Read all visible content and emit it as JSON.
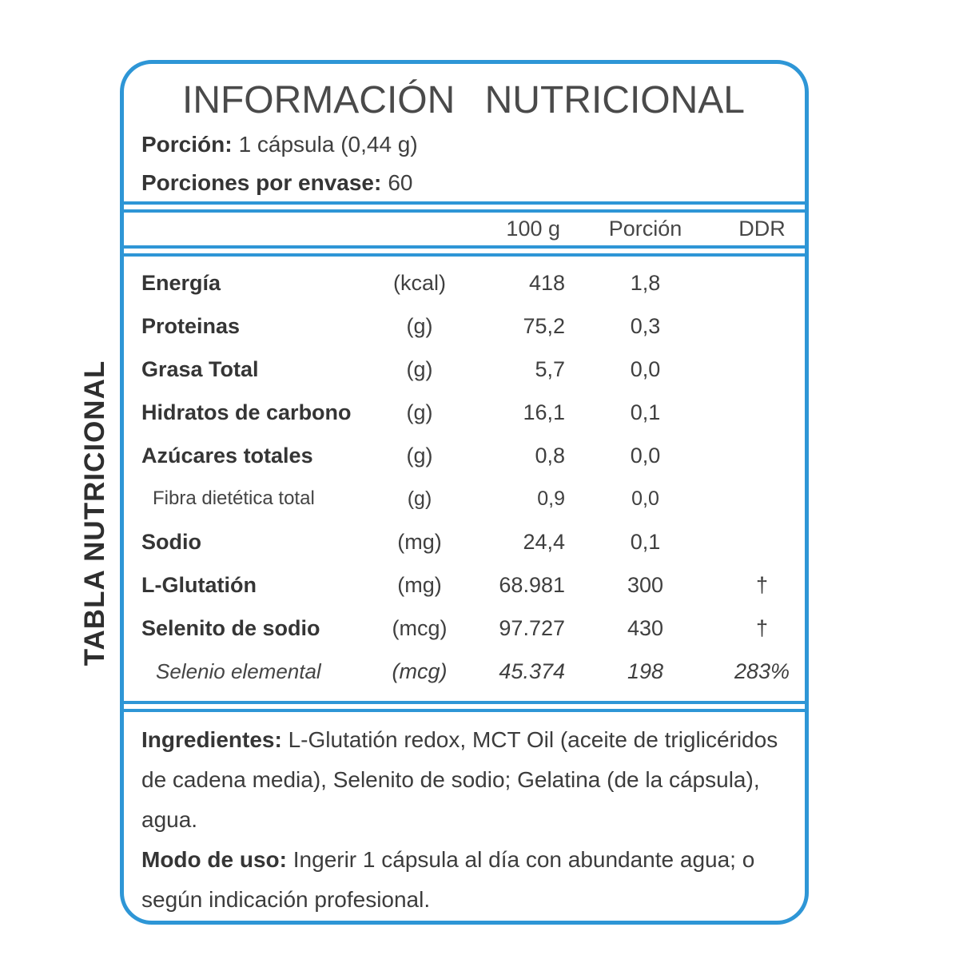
{
  "colors": {
    "accent": "#2E96D6",
    "text": "#3F3F3F"
  },
  "side_label": "TABLA NUTRICIONAL",
  "header": {
    "title": "INFORMACIÓN NUTRICIONAL",
    "serving": {
      "label": "Porción:",
      "value": "1 cápsula (0,44 g)"
    },
    "servings_per_container": {
      "label": "Porciones por envase:",
      "value": "60"
    }
  },
  "table": {
    "columns": {
      "per_100g": "100 g",
      "portion": "Porción",
      "ddr": "DDR"
    },
    "rows": [
      {
        "name": "Energía",
        "unit": "(kcal)",
        "per_100g": "418",
        "portion": "1,8",
        "ddr": "",
        "style": "bold"
      },
      {
        "name": "Proteinas",
        "unit": "(g)",
        "per_100g": "75,2",
        "portion": "0,3",
        "ddr": "",
        "style": "bold"
      },
      {
        "name": "Grasa Total",
        "unit": "(g)",
        "per_100g": "5,7",
        "portion": "0,0",
        "ddr": "",
        "style": "bold"
      },
      {
        "name": "Hidratos de carbono",
        "unit": "(g)",
        "per_100g": "16,1",
        "portion": "0,1",
        "ddr": "",
        "style": "bold"
      },
      {
        "name": "Azúcares totales",
        "unit": "(g)",
        "per_100g": "0,8",
        "portion": "0,0",
        "ddr": "",
        "style": "bold"
      },
      {
        "name": "Fibra dietética total",
        "unit": "(g)",
        "per_100g": "0,9",
        "portion": "0,0",
        "ddr": "",
        "style": "sub"
      },
      {
        "name": "Sodio",
        "unit": "(mg)",
        "per_100g": "24,4",
        "portion": "0,1",
        "ddr": "",
        "style": "bold"
      },
      {
        "name": "L-Glutatión",
        "unit": "(mg)",
        "per_100g": "68.981",
        "portion": "300",
        "ddr": "†",
        "style": "bold"
      },
      {
        "name": "Selenito de sodio",
        "unit": "(mcg)",
        "per_100g": "97.727",
        "portion": "430",
        "ddr": "†",
        "style": "bold"
      },
      {
        "name": "Selenio elemental",
        "unit": "(mcg)",
        "per_100g": "45.374",
        "portion": "198",
        "ddr": "283%",
        "style": "italic"
      }
    ]
  },
  "footer": {
    "ingredients": {
      "label": "Ingredientes:",
      "text": "L-Glutatión redox, MCT Oil (aceite de triglicéridos de cadena media), Selenito de sodio; Gelatina (de la cápsula), agua."
    },
    "usage": {
      "label": "Modo de uso:",
      "text": "Ingerir 1 cápsula al día con abundante agua; o según indicación profesional."
    }
  }
}
